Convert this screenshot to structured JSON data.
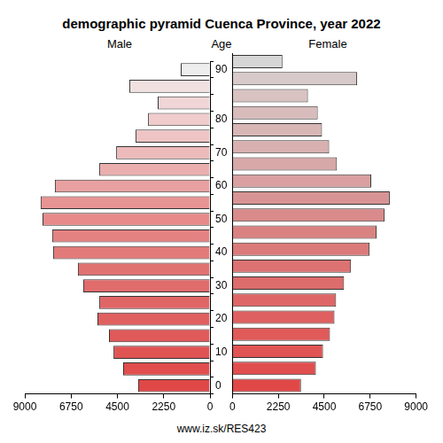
{
  "chart_data": {
    "type": "bar",
    "title": "demographic pyramid Cuenca Province, year 2022",
    "ylabel": "Age",
    "source": "www.iz.sk/RES423",
    "orientation": "horizontal",
    "grid": false,
    "categories": [
      "0",
      null,
      "10",
      null,
      "20",
      null,
      "30",
      null,
      "40",
      null,
      "50",
      null,
      "60",
      null,
      "70",
      null,
      "80",
      null,
      null,
      "90"
    ],
    "xlim": [
      0,
      9000
    ],
    "xticks": [
      0,
      2250,
      4500,
      6750,
      9000
    ],
    "series": [
      {
        "name": "Male",
        "values": [
          3490,
          4220,
          4690,
          4910,
          5470,
          5380,
          6160,
          6420,
          7620,
          7670,
          8140,
          8230,
          7540,
          5380,
          4560,
          3620,
          3010,
          2540,
          3920,
          1420
        ],
        "colors": [
          "#e04848",
          "#e04e4e",
          "#e05454",
          "#e05a5a",
          "#e06060",
          "#e06666",
          "#e06c6c",
          "#e07272",
          "#e27a7a",
          "#e48282",
          "#e68a8a",
          "#e89494",
          "#e8a0a0",
          "#eaaeae",
          "#ecbaba",
          "#eec4c4",
          "#f0cccc",
          "#f0d6d6",
          "#f0e0e0",
          "#eeeeee"
        ]
      },
      {
        "name": "Female",
        "values": [
          3360,
          4090,
          4440,
          4780,
          5000,
          5080,
          5470,
          5810,
          6720,
          7060,
          7450,
          7710,
          6800,
          5120,
          4740,
          4390,
          4180,
          3700,
          6110,
          2450
        ],
        "colors": [
          "#e04848",
          "#e04e4e",
          "#e05454",
          "#e05a5a",
          "#df6060",
          "#de6666",
          "#dd6c6c",
          "#dc7272",
          "#db7a7a",
          "#da8282",
          "#d98a8a",
          "#d89494",
          "#d8a0a0",
          "#d8a8a8",
          "#d8b0b0",
          "#d8b6b6",
          "#d8bcbc",
          "#d8c2c2",
          "#d8caca",
          "#d6d6d6"
        ]
      }
    ]
  }
}
